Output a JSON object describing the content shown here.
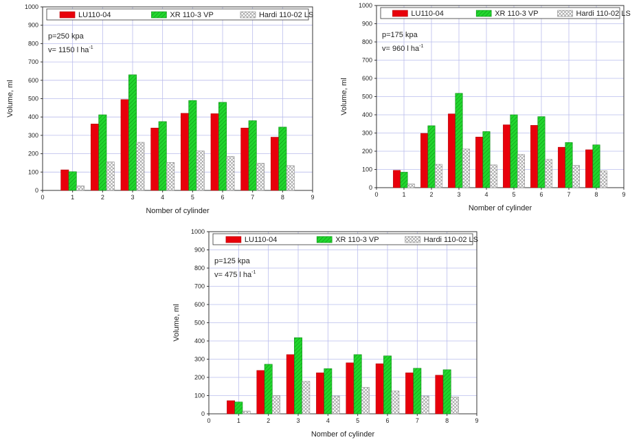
{
  "chart_data": [
    {
      "type": "bar",
      "xlabel": "Nomber of cylinder",
      "ylabel": "Volume, ml",
      "annotation": {
        "pressure": "p=250 kpa",
        "volume_rate": "v= 1150 l ha",
        "volume_rate_sup": "-1"
      },
      "xlim": [
        0,
        9
      ],
      "ylim": [
        0,
        1000
      ],
      "x_ticks": [
        0,
        1,
        2,
        3,
        4,
        5,
        6,
        7,
        8,
        9
      ],
      "y_ticks": [
        0,
        100,
        200,
        300,
        400,
        500,
        600,
        700,
        800,
        900,
        1000
      ],
      "grid": true,
      "legend_position": "top",
      "categories": [
        1,
        2,
        3,
        4,
        5,
        6,
        7,
        8
      ],
      "series": [
        {
          "name": "LU110-04",
          "values": [
            112,
            362,
            495,
            340,
            420,
            418,
            340,
            290
          ]
        },
        {
          "name": "XR 110-3 VP",
          "values": [
            102,
            412,
            630,
            375,
            490,
            480,
            380,
            345
          ]
        },
        {
          "name": "Hardi 110-02 LS",
          "values": [
            25,
            155,
            262,
            152,
            215,
            185,
            148,
            135
          ]
        }
      ]
    },
    {
      "type": "bar",
      "xlabel": "Nomber of cylinder",
      "ylabel": "Volume, ml",
      "annotation": {
        "pressure": "p=175 kpa",
        "volume_rate": "v= 960  l ha",
        "volume_rate_sup": "-1"
      },
      "xlim": [
        0,
        9
      ],
      "ylim": [
        0,
        1000
      ],
      "x_ticks": [
        0,
        1,
        2,
        3,
        4,
        5,
        6,
        7,
        8,
        9
      ],
      "y_ticks": [
        0,
        100,
        200,
        300,
        400,
        500,
        600,
        700,
        800,
        900,
        1000
      ],
      "grid": true,
      "legend_position": "top",
      "categories": [
        1,
        2,
        3,
        4,
        5,
        6,
        7,
        8
      ],
      "series": [
        {
          "name": "LU110-04",
          "values": [
            95,
            298,
            405,
            278,
            345,
            342,
            222,
            208
          ]
        },
        {
          "name": "XR 110-3 VP",
          "values": [
            85,
            340,
            518,
            308,
            400,
            390,
            248,
            235
          ]
        },
        {
          "name": "Hardi 110-02 LS",
          "values": [
            20,
            128,
            212,
            125,
            182,
            155,
            122,
            92
          ]
        }
      ]
    },
    {
      "type": "bar",
      "xlabel": "Nomber of cylinder",
      "ylabel": "Volume, ml",
      "annotation": {
        "pressure": "p=125 kpa",
        "volume_rate": "v= 475 l ha",
        "volume_rate_sup": "-1"
      },
      "xlim": [
        0,
        9
      ],
      "ylim": [
        0,
        1000
      ],
      "x_ticks": [
        0,
        1,
        2,
        3,
        4,
        5,
        6,
        7,
        8,
        9
      ],
      "y_ticks": [
        0,
        100,
        200,
        300,
        400,
        500,
        600,
        700,
        800,
        900,
        1000
      ],
      "grid": true,
      "legend_position": "top",
      "categories": [
        1,
        2,
        3,
        4,
        5,
        6,
        7,
        8
      ],
      "series": [
        {
          "name": "LU110-04",
          "values": [
            72,
            238,
            325,
            225,
            280,
            275,
            225,
            212
          ]
        },
        {
          "name": "XR 110-3 VP",
          "values": [
            65,
            272,
            418,
            248,
            325,
            318,
            250,
            242
          ]
        },
        {
          "name": "Hardi 110-02 LS",
          "values": [
            15,
            100,
            178,
            98,
            145,
            125,
            98,
            92
          ]
        }
      ]
    }
  ],
  "colors": {
    "LU110-04": "#e8000b",
    "XR 110-3 VP": "#22d62e",
    "Hardi 110-02 LS": "#ffffff",
    "grid": "#b9bcec",
    "axis": "#333333"
  }
}
